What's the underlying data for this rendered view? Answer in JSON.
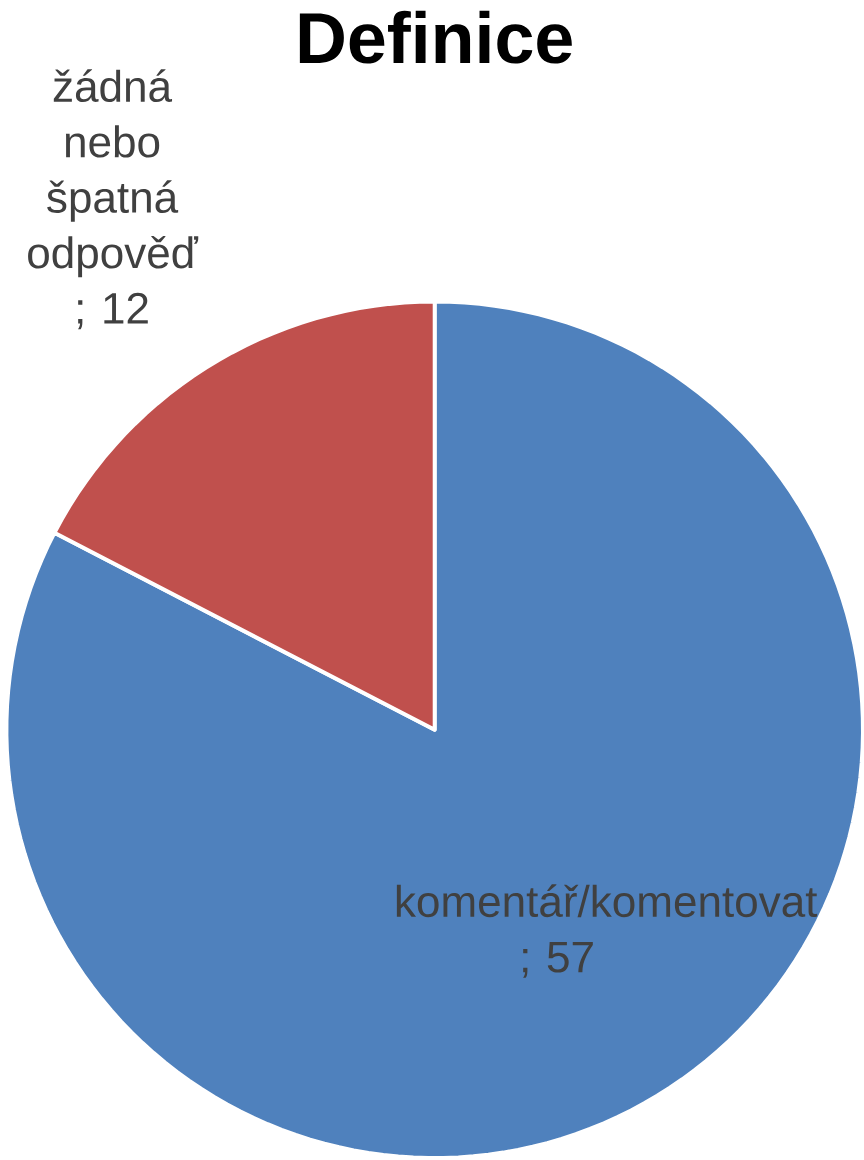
{
  "chart_data": {
    "type": "pie",
    "title": "Definice",
    "categories": [
      "komentář/komentovat",
      "žádná nebo špatná odpověď"
    ],
    "values": [
      57,
      12
    ],
    "colors": [
      "#4f81bd",
      "#c0504d"
    ],
    "value_labels": [
      "; 57",
      "; 12"
    ]
  }
}
